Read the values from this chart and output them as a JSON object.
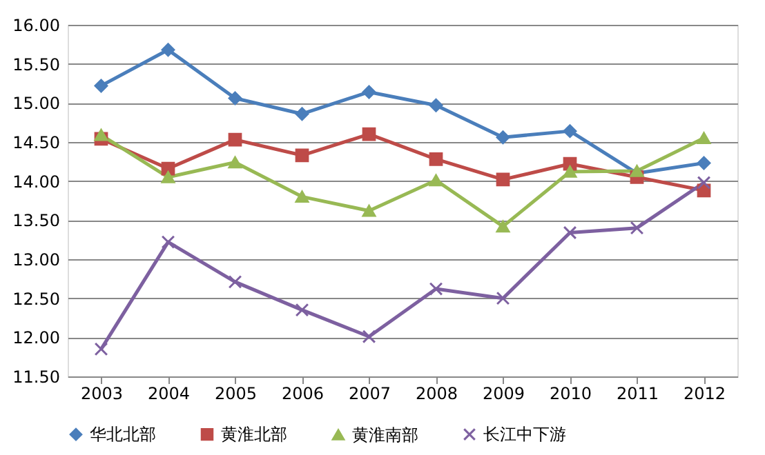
{
  "chart_data": {
    "type": "line",
    "categories": [
      "2003",
      "2004",
      "2005",
      "2006",
      "2007",
      "2008",
      "2009",
      "2010",
      "2011",
      "2012"
    ],
    "series": [
      {
        "name": "华北北部",
        "color": "#4a7ebb",
        "marker": "diamond",
        "values": [
          15.22,
          15.68,
          15.06,
          14.86,
          15.14,
          14.97,
          14.56,
          14.64,
          14.1,
          14.23
        ]
      },
      {
        "name": "黄淮北部",
        "color": "#be4b48",
        "marker": "square",
        "values": [
          14.54,
          14.16,
          14.53,
          14.33,
          14.6,
          14.28,
          14.02,
          14.22,
          14.05,
          13.88
        ]
      },
      {
        "name": "黄淮南部",
        "color": "#98b954",
        "marker": "triangle",
        "values": [
          14.59,
          14.05,
          14.24,
          13.8,
          13.62,
          14.01,
          13.42,
          14.12,
          14.13,
          14.55
        ]
      },
      {
        "name": "长江中下游",
        "color": "#7d60a0",
        "marker": "cross",
        "values": [
          11.85,
          13.22,
          12.71,
          12.35,
          12.01,
          12.62,
          12.5,
          13.34,
          13.4,
          13.98
        ]
      }
    ],
    "ylim": [
      11.5,
      16
    ],
    "yticks": [
      {
        "value": 11.5,
        "label": "11.50"
      },
      {
        "value": 12,
        "label": "12.00"
      },
      {
        "value": 12.5,
        "label": "12.50"
      },
      {
        "value": 13,
        "label": "13.00"
      },
      {
        "value": 13.5,
        "label": "13.50"
      },
      {
        "value": 14,
        "label": "14.00"
      },
      {
        "value": 14.5,
        "label": "14.50"
      },
      {
        "value": 15,
        "label": "15.00"
      },
      {
        "value": 15.5,
        "label": "15.50"
      },
      {
        "value": 16,
        "label": "16.00"
      }
    ],
    "grid": "y",
    "legend": "bottom",
    "line_style": "solid"
  }
}
